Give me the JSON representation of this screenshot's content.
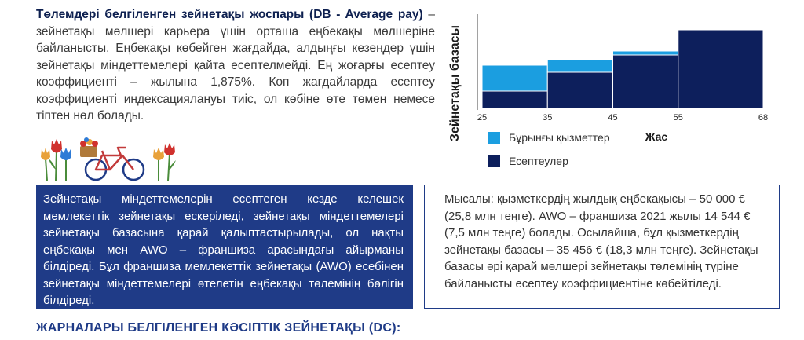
{
  "intro": {
    "heading": "Төлемдері белгіленген зейнетақы жоспары (DB - Average pay)",
    "body": " – зейнетақы мөлшері карьера үшін орташа еңбекақы мөлшеріне байланысты. Еңбекақы көбейген жағдайда, алдыңғы кезеңдер үшін зейнетақы міндеттемелері қайта есептелмейді. Ең жоғарғы есептеу коэффициенті – жылына 1,875%. Көп жағдайларда есептеу коэффициенті индексациялануы тиіс, ол көбіне өте төмен немесе тіптен нөл болады."
  },
  "chart_data": {
    "type": "bar",
    "ylabel": "Зейнетақы базасы",
    "xlabel": "Жас",
    "x_ticks": [
      "25",
      "35",
      "45",
      "55",
      "68"
    ],
    "bins": [
      [
        25,
        35
      ],
      [
        35,
        45
      ],
      [
        45,
        55
      ],
      [
        55,
        68
      ]
    ],
    "series": [
      {
        "name": "Есептеулер",
        "values": [
          0.22,
          0.46,
          0.68,
          1.0
        ]
      },
      {
        "name": "Бұрынғы қызметтер",
        "values": [
          0.33,
          0.16,
          0.05,
          0.0
        ]
      }
    ],
    "colors": {
      "Есептеулер": "#0d1f5c",
      "Бұрынғы қызметтер": "#1b9ee0"
    },
    "legend_position": "bottom-left"
  },
  "box_left": {
    "text": "Зейнетақы міндеттемелерін есептеген кезде келешек мемлекеттік зейнетақы ескеріледі, зейнетақы міндеттемелері зейнетақы базасына қарай қалыптастырылады, ол нақты еңбекақы мен AWO – франшиза арасындағы айырманы білдіреді. Бұл франшиза мемлекеттік зейнетақы (AWO) есебінен зейнетақы міндеттемелері өтелетін еңбекақы төлемінің бөлігін білдіреді."
  },
  "box_right": {
    "text": "Мысалы: қызметкердің жылдық еңбекақысы – 50 000 € (25,8 млн теңге). AWO – франшиза 2021 жылы 14 544 € (7,5 млн теңге) болады. Осылайша, бұл қызметкердің зейнетақы базасы – 35 456 € (18,3 млн теңге). Зейнетақы базасы әрі қарай мөлшері зейнетақы төлемінің түріне байланысты есептеу коэффициентіне көбейтіледі."
  },
  "footer": {
    "heading": "ЖАРНАЛАРЫ БЕЛГІЛЕНГЕН КӘСІПТІК ЗЕЙНЕТАҚЫ (DC):"
  },
  "decoration": {
    "icon": "bicycle-and-tulips-icon"
  }
}
